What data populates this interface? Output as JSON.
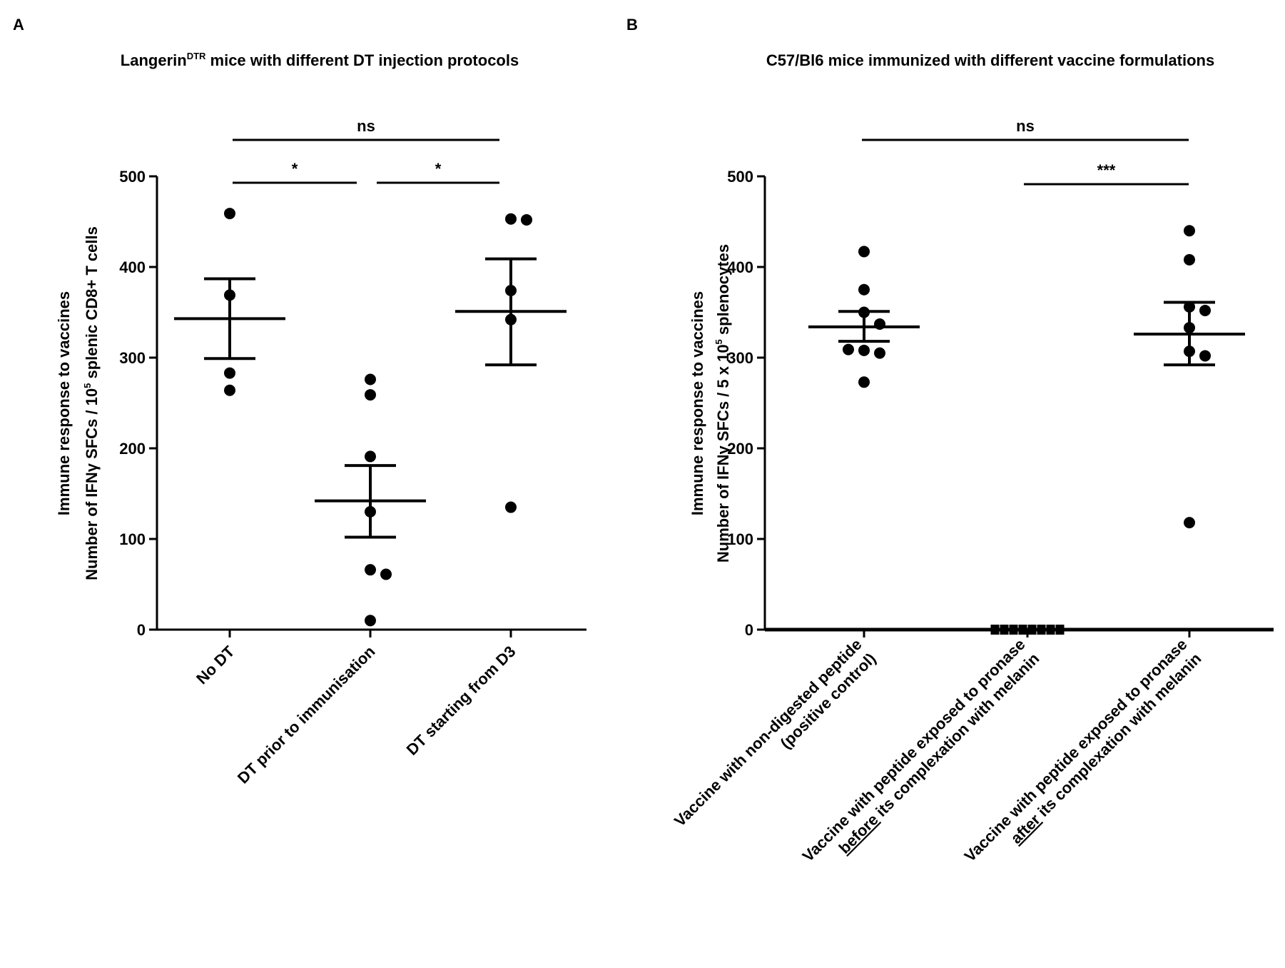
{
  "chart_data": [
    {
      "panel": "A",
      "type": "scatter",
      "title_main": "Langerin",
      "title_sup": "DTR",
      "title_rest": " mice with different DT injection protocols",
      "ylabel_line1": "Immune response to vaccines",
      "ylabel_line2_a": "Number of IFNγ SFCs / 10",
      "ylabel_line2_sup": "5",
      "ylabel_line2_b": " splenic CD8+ T cells",
      "ylim": [
        0,
        500
      ],
      "yticks": [
        0,
        100,
        200,
        300,
        400,
        500
      ],
      "categories": [
        {
          "label": [
            "No DT"
          ],
          "underline": null
        },
        {
          "label": [
            "DT prior to immunisation"
          ],
          "underline": null
        },
        {
          "label": [
            "DT starting from D3"
          ],
          "underline": null
        }
      ],
      "groups": [
        {
          "points": [
            459,
            369,
            283,
            264
          ],
          "mean": 343,
          "sem_low": 299,
          "sem_high": 387,
          "marker": "circle"
        },
        {
          "points": [
            276,
            259,
            191,
            130,
            66,
            61,
            10
          ],
          "mean": 142,
          "sem_low": 102,
          "sem_high": 181,
          "marker": "circle"
        },
        {
          "points": [
            453,
            452,
            374,
            342,
            135
          ],
          "mean": 351,
          "sem_low": 292,
          "sem_high": 409,
          "marker": "circle"
        }
      ],
      "significance": [
        {
          "from": 0,
          "to": 2,
          "label": "ns",
          "level": "top"
        },
        {
          "from": 0,
          "to": 1,
          "label": "*",
          "level": "low"
        },
        {
          "from": 1,
          "to": 2,
          "label": "*",
          "level": "low"
        }
      ]
    },
    {
      "panel": "B",
      "type": "scatter",
      "title_main": "C57/Bl6 mice immunized with different vaccine formulations",
      "title_sup": "",
      "title_rest": "",
      "ylabel_line1": "Immune response to vaccines",
      "ylabel_line2_a": "Number of IFNγ SFCs / 5 x 10",
      "ylabel_line2_sup": "5",
      "ylabel_line2_b": " splenocytes",
      "ylim": [
        0,
        500
      ],
      "yticks": [
        0,
        100,
        200,
        300,
        400,
        500
      ],
      "categories": [
        {
          "label": [
            "Vaccine with non-digested peptide",
            "(positive control)"
          ],
          "underline": null
        },
        {
          "label": [
            "Vaccine with peptide exposed to pronase",
            "before its complexation with melanin"
          ],
          "underline": "before"
        },
        {
          "label": [
            "Vaccine with peptide exposed to pronase",
            "after its complexation with melanin"
          ],
          "underline": "after"
        }
      ],
      "groups": [
        {
          "points": [
            417,
            375,
            350,
            337,
            308,
            305,
            309,
            273
          ],
          "mean": 334,
          "sem_low": 318,
          "sem_high": 351,
          "marker": "circle"
        },
        {
          "points": [
            0,
            0,
            0,
            0,
            0,
            0,
            0,
            0
          ],
          "mean": 0,
          "sem_low": 0,
          "sem_high": 0,
          "marker": "square"
        },
        {
          "points": [
            440,
            408,
            356,
            352,
            333,
            307,
            302,
            118
          ],
          "mean": 326,
          "sem_low": 292,
          "sem_high": 361,
          "marker": "circle"
        }
      ],
      "significance": [
        {
          "from": 0,
          "to": 2,
          "label": "ns",
          "level": "top"
        },
        {
          "from": 1,
          "to": 2,
          "label": "***",
          "level": "low"
        }
      ]
    }
  ]
}
